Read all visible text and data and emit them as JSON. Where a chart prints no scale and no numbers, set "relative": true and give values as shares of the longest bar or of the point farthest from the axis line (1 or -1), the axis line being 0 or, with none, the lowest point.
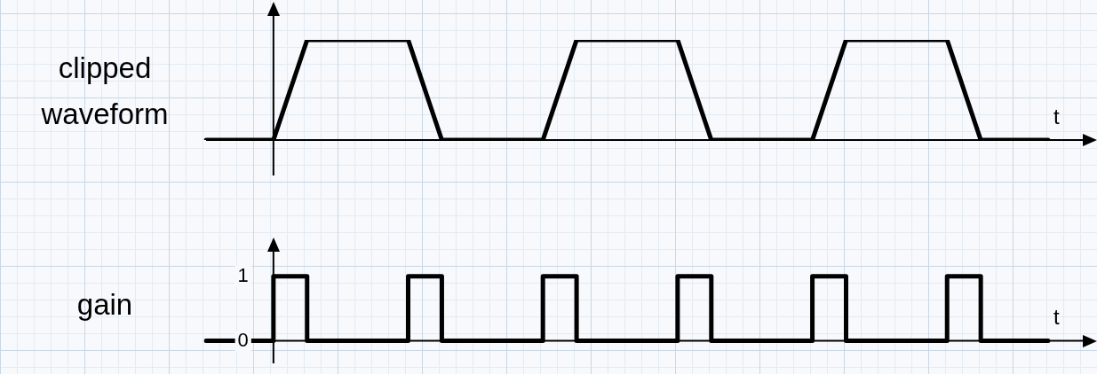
{
  "chart_data": [
    {
      "type": "line",
      "ylabel": "clipped waveform",
      "xlabel": "t",
      "relative": true,
      "tick_labels": false,
      "legend": false,
      "marker": "none",
      "categories": [
        null,
        null,
        null,
        null,
        null,
        null,
        null,
        null,
        null,
        null,
        null,
        null,
        null,
        null,
        null,
        null,
        null,
        null,
        null,
        null,
        null,
        null,
        null,
        null,
        null,
        null
      ],
      "series": [
        {
          "color": "#000000",
          "values": [
            0,
            0,
            0,
            1,
            1,
            1,
            1,
            0,
            0,
            0,
            0,
            1,
            1,
            1,
            1,
            0,
            0,
            0,
            0,
            1,
            1,
            1,
            1,
            0,
            0,
            0
          ]
        }
      ]
    },
    {
      "type": "step",
      "ylabel": "gain",
      "xlabel": "t",
      "tick_labels": "y",
      "legend": false,
      "marker": "none",
      "ylim": [
        -0.35,
        1.6
      ],
      "yticks": [
        0,
        1
      ],
      "categories": [
        null,
        null,
        null,
        null,
        null,
        null,
        null,
        null,
        null,
        null,
        null,
        null,
        null,
        null,
        null,
        null,
        null,
        null,
        null,
        null,
        null,
        null,
        null,
        null,
        null,
        null
      ],
      "series": [
        {
          "color": "#000000",
          "values": [
            0,
            0,
            1,
            0,
            0,
            0,
            1,
            0,
            0,
            0,
            1,
            0,
            0,
            0,
            1,
            0,
            0,
            0,
            1,
            0,
            0,
            0,
            1,
            0,
            0,
            0
          ]
        }
      ]
    }
  ]
}
